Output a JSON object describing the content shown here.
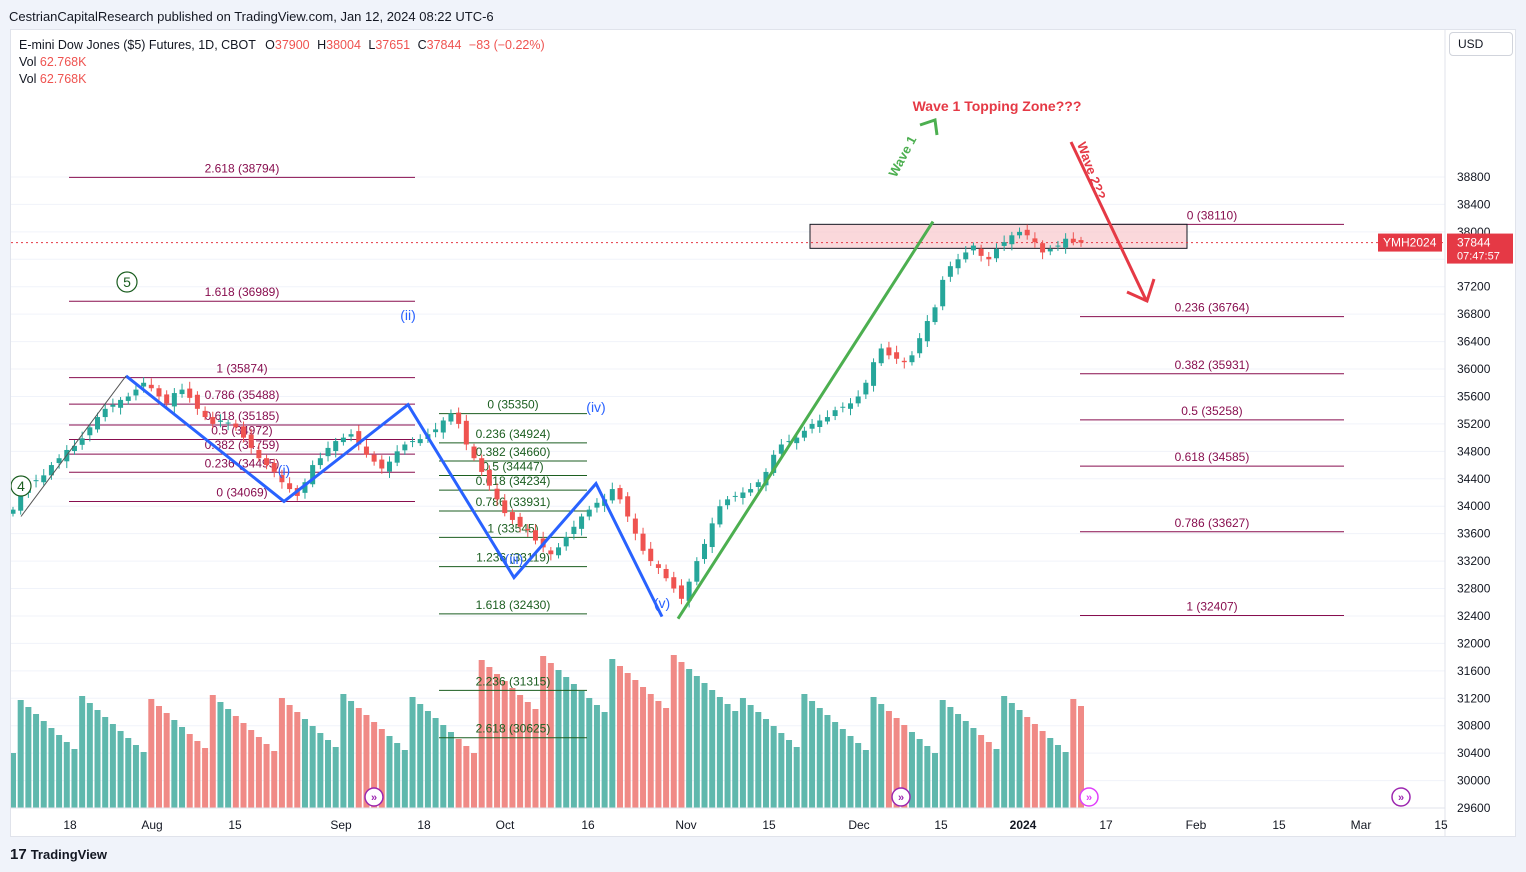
{
  "header": {
    "published": "CestrianCapitalResearch published on TradingView.com, Jan 12, 2024 08:22 UTC-6"
  },
  "footer": {
    "logo_text": "TradingView"
  },
  "legend": {
    "symbol": "E-mini Dow Jones ($5) Futures, 1D, CBOT",
    "o_label": "O",
    "o_value": "37900",
    "h_label": "H",
    "h_value": "38004",
    "l_label": "L",
    "l_value": "37651",
    "c_label": "C",
    "c_value": "37844",
    "change": "−83 (−0.22%)",
    "vol_label": "Vol",
    "vol_value": "62.768K"
  },
  "price_scale": {
    "currency_button": "USD",
    "ticks": [
      "38800",
      "38400",
      "38000",
      "37600",
      "37200",
      "36800",
      "36400",
      "36000",
      "35600",
      "35200",
      "34800",
      "34400",
      "34000",
      "33600",
      "33200",
      "32800",
      "32400",
      "32000",
      "31600",
      "31200",
      "30800",
      "30400",
      "30000",
      "29600"
    ],
    "current_symbol": "YMH2024",
    "current_price": "37844",
    "countdown": "07:47:57"
  },
  "time_axis": {
    "labels": [
      "18",
      "Aug",
      "15",
      "Sep",
      "18",
      "Oct",
      "16",
      "Nov",
      "15",
      "Dec",
      "15",
      "2024",
      "17",
      "Feb",
      "15",
      "Mar",
      "15"
    ]
  },
  "colors": {
    "up": "#26a69a",
    "down": "#ef5350",
    "up_vol": "#5fb8ad",
    "down_vol": "#f08a86",
    "blue": "#2962ff",
    "green_line": "#4caf50",
    "red_arrow": "#e53945",
    "fib_purple": "#880e4f",
    "fib_green": "#1b5e20",
    "zone_fill": "#f8c8cc"
  },
  "annotations": {
    "wave_1_topping_zone": "Wave 1 Topping Zone???",
    "wave_1": "Wave 1",
    "wave_2": "Wave 2??",
    "circled_5": "5",
    "circled_4": "4",
    "wave_i": "(i)",
    "wave_ii": "(ii)",
    "wave_iii": "(iii)",
    "wave_iv": "(iv)",
    "wave_v": "(v)"
  },
  "chart_data": {
    "type": "candlestick",
    "title": "E-mini Dow Jones ($5) Futures, 1D, CBOT",
    "ylim": [
      29400,
      39000
    ],
    "x_axis_labels": [
      "18",
      "Aug",
      "15",
      "Sep",
      "18",
      "Oct",
      "16",
      "Nov",
      "15",
      "Dec",
      "15",
      "2024",
      "17",
      "Feb",
      "15",
      "Mar",
      "15"
    ],
    "last": {
      "open": 37900,
      "high": 38004,
      "low": 37651,
      "close": 37844,
      "volume": "62.768K"
    },
    "fib_left": [
      {
        "label": "2.618 (38794)",
        "value": 38794
      },
      {
        "label": "1.618 (36989)",
        "value": 36989
      },
      {
        "label": "1 (35874)",
        "value": 35874
      },
      {
        "label": "0.786 (35488)",
        "value": 35488
      },
      {
        "label": "0.618 (35185)",
        "value": 35185
      },
      {
        "label": "0.5 (34972)",
        "value": 34972
      },
      {
        "label": "0.382 (34759)",
        "value": 34759
      },
      {
        "label": "0.236 (34495)",
        "value": 34495
      },
      {
        "label": "0 (34069)",
        "value": 34069
      }
    ],
    "fib_middle": [
      {
        "label": "0 (35350)",
        "value": 35350
      },
      {
        "label": "0.236 (34924)",
        "value": 34924
      },
      {
        "label": "0.382 (34660)",
        "value": 34660
      },
      {
        "label": "0.5 (34447)",
        "value": 34447
      },
      {
        "label": "0.618 (34234)",
        "value": 34234
      },
      {
        "label": "0.786 (33931)",
        "value": 33931
      },
      {
        "label": "1 (33545)",
        "value": 33545
      },
      {
        "label": "1.236 (33119)",
        "value": 33119
      },
      {
        "label": "1.618 (32430)",
        "value": 32430
      },
      {
        "label": "2.236 (31315)",
        "value": 31315
      },
      {
        "label": "2.618 (30625)",
        "value": 30625
      }
    ],
    "fib_right": [
      {
        "label": "0 (38110)",
        "value": 38110
      },
      {
        "label": "0.236 (36764)",
        "value": 36764
      },
      {
        "label": "0.382 (35931)",
        "value": 35931
      },
      {
        "label": "0.5 (35258)",
        "value": 35258
      },
      {
        "label": "0.618 (34585)",
        "value": 34585
      },
      {
        "label": "0.786 (33627)",
        "value": 33627
      },
      {
        "label": "1 (32407)",
        "value": 32407
      }
    ],
    "wave_points": {
      "w4": 33850,
      "w5": 35900,
      "i": 34070,
      "ii": 35480,
      "iii": 32960,
      "iv": 34330,
      "v": 32390,
      "wave1_top": 38150,
      "arrow_target": 35900
    },
    "closes": [
      33950,
      34180,
      34320,
      34380,
      34450,
      34600,
      34700,
      34820,
      34880,
      34990,
      35150,
      35300,
      35420,
      35480,
      35550,
      35600,
      35700,
      35800,
      35720,
      35600,
      35500,
      35650,
      35700,
      35580,
      35420,
      35300,
      35200,
      35250,
      35220,
      35150,
      35000,
      34850,
      34700,
      34600,
      34500,
      34350,
      34250,
      34150,
      34350,
      34600,
      34700,
      34850,
      34950,
      35000,
      35050,
      34900,
      34750,
      34650,
      34550,
      34650,
      34800,
      34900,
      34950,
      34980,
      35050,
      35120,
      35250,
      35350,
      35200,
      34900,
      34700,
      34500,
      34300,
      34100,
      33900,
      33800,
      33700,
      33650,
      33500,
      33400,
      33300,
      33400,
      33550,
      33700,
      33850,
      33950,
      34050,
      34100,
      34250,
      34100,
      33850,
      33600,
      33350,
      33200,
      33100,
      32950,
      32800,
      32650,
      32900,
      33200,
      33450,
      33750,
      34000,
      34100,
      34150,
      34200,
      34250,
      34350,
      34500,
      34750,
      34900,
      34950,
      35000,
      35100,
      35200,
      35250,
      35300,
      35400,
      35450,
      35500,
      35600,
      35800,
      36100,
      36300,
      36200,
      36150,
      36100,
      36200,
      36450,
      36700,
      36900,
      37300,
      37500,
      37600,
      37700,
      37800,
      37650,
      37600,
      37750,
      37850,
      37950,
      38000,
      37950,
      37850,
      37700,
      37750,
      37800,
      37900,
      37850,
      37844
    ]
  }
}
